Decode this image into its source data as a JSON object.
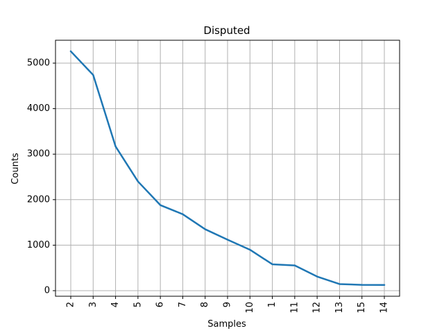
{
  "chart_data": {
    "type": "line",
    "title": "Disputed",
    "xlabel": "Samples",
    "ylabel": "Counts",
    "categories": [
      "2",
      "3",
      "4",
      "5",
      "6",
      "7",
      "8",
      "9",
      "10",
      "1",
      "11",
      "12",
      "13",
      "15",
      "14"
    ],
    "series": [
      {
        "values": [
          5260,
          4740,
          3170,
          2400,
          1880,
          1680,
          1350,
          1120,
          900,
          580,
          555,
          310,
          145,
          128,
          125
        ]
      }
    ],
    "ylim": [
      0,
      5500
    ],
    "yticks": [
      0,
      1000,
      2000,
      3000,
      4000,
      5000
    ],
    "grid": true,
    "line_color": "#1f77b4"
  }
}
